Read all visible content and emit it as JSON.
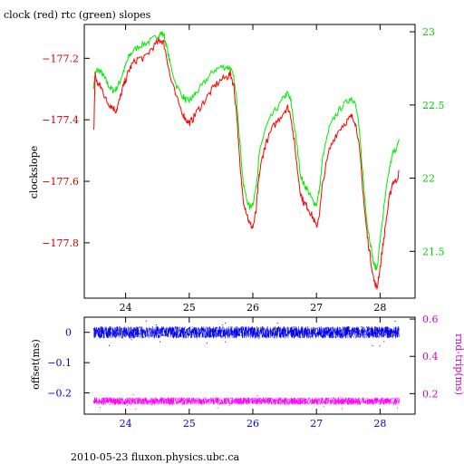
{
  "header": {
    "title": "clock (red) rtc (green) slopes"
  },
  "footer": {
    "text": "2010-05-23 fluxon.physics.ubc.ca"
  },
  "colors": {
    "clock": "#ff0000",
    "rtc": "#00ee00",
    "offset": "#0000ee",
    "roundtrip": "#ff00ff",
    "axis": "#000000",
    "left_top_ticks": "#cc0000",
    "right_top_ticks": "#00cc00",
    "left_bottom_ticks": "#0000cc",
    "right_bottom_ticks": "#cc00cc"
  },
  "chart_data": [
    {
      "type": "line",
      "title": "clock (red) rtc (green) slopes",
      "xlabel": "",
      "ylabel": "clockslope",
      "y2label": "",
      "xlim": [
        23.35,
        28.55
      ],
      "ylim": [
        -177.98,
        -177.09
      ],
      "y2lim": [
        21.18,
        23.05
      ],
      "x_ticks": [
        24,
        25,
        26,
        27,
        28
      ],
      "y_ticks": [
        -177.2,
        -177.4,
        -177.6,
        -177.8
      ],
      "y_tick_labels": [
        "−177.2",
        "−177.4",
        "−177.6",
        "−177.8"
      ],
      "y2_ticks": [
        23,
        22.5,
        22,
        21.5
      ],
      "y2_tick_labels": [
        "23",
        "22.5",
        "22",
        "21.5"
      ],
      "x_tick_labels": [
        "24",
        "25",
        "26",
        "27",
        "28"
      ],
      "grid": false,
      "series": [
        {
          "name": "clock",
          "axis": "left",
          "x": [
            23.5,
            23.52,
            23.55,
            23.6,
            23.65,
            23.7,
            23.75,
            23.8,
            23.85,
            23.9,
            23.95,
            24.0,
            24.05,
            24.1,
            24.2,
            24.3,
            24.4,
            24.5,
            24.55,
            24.6,
            24.65,
            24.7,
            24.8,
            24.9,
            24.95,
            25.0,
            25.05,
            25.1,
            25.2,
            25.3,
            25.4,
            25.5,
            25.6,
            25.65,
            25.7,
            25.75,
            25.8,
            25.85,
            25.9,
            25.95,
            26.0,
            26.05,
            26.08,
            26.1,
            26.15,
            26.2,
            26.3,
            26.4,
            26.5,
            26.55,
            26.6,
            26.65,
            26.7,
            26.75,
            26.8,
            26.85,
            26.9,
            26.95,
            27.0,
            27.05,
            27.1,
            27.2,
            27.3,
            27.4,
            27.5,
            27.55,
            27.6,
            27.65,
            27.7,
            27.75,
            27.8,
            27.85,
            27.9,
            27.95,
            28.0,
            28.05,
            28.1,
            28.15,
            28.2,
            28.25,
            28.3
          ],
          "values": [
            -177.44,
            -177.25,
            -177.28,
            -177.29,
            -177.31,
            -177.34,
            -177.35,
            -177.36,
            -177.37,
            -177.34,
            -177.3,
            -177.27,
            -177.24,
            -177.22,
            -177.2,
            -177.2,
            -177.17,
            -177.15,
            -177.14,
            -177.15,
            -177.2,
            -177.26,
            -177.33,
            -177.38,
            -177.4,
            -177.41,
            -177.4,
            -177.38,
            -177.35,
            -177.32,
            -177.29,
            -177.27,
            -177.26,
            -177.25,
            -177.29,
            -177.39,
            -177.56,
            -177.66,
            -177.7,
            -177.74,
            -177.75,
            -177.7,
            -177.62,
            -177.58,
            -177.52,
            -177.48,
            -177.43,
            -177.4,
            -177.37,
            -177.36,
            -177.39,
            -177.47,
            -177.56,
            -177.64,
            -177.67,
            -177.68,
            -177.7,
            -177.72,
            -177.75,
            -177.7,
            -177.6,
            -177.5,
            -177.45,
            -177.42,
            -177.4,
            -177.39,
            -177.4,
            -177.45,
            -177.55,
            -177.68,
            -177.78,
            -177.85,
            -177.92,
            -177.95,
            -177.88,
            -177.8,
            -177.72,
            -177.65,
            -177.6,
            -177.6,
            -177.57
          ]
        },
        {
          "name": "rtc",
          "axis": "right",
          "x": [
            23.5,
            23.52,
            23.55,
            23.6,
            23.65,
            23.7,
            23.75,
            23.8,
            23.85,
            23.9,
            23.95,
            24.0,
            24.05,
            24.1,
            24.2,
            24.3,
            24.4,
            24.5,
            24.55,
            24.6,
            24.65,
            24.7,
            24.8,
            24.9,
            24.95,
            25.0,
            25.05,
            25.1,
            25.2,
            25.3,
            25.4,
            25.5,
            25.6,
            25.65,
            25.7,
            25.75,
            25.8,
            25.85,
            25.9,
            25.95,
            26.0,
            26.05,
            26.08,
            26.1,
            26.15,
            26.2,
            26.3,
            26.4,
            26.5,
            26.55,
            26.6,
            26.65,
            26.7,
            26.75,
            26.8,
            26.85,
            26.9,
            26.95,
            27.0,
            27.05,
            27.1,
            27.2,
            27.3,
            27.4,
            27.5,
            27.55,
            27.6,
            27.65,
            27.7,
            27.75,
            27.8,
            27.85,
            27.9,
            27.95,
            28.0,
            28.05,
            28.1,
            28.15,
            28.2,
            28.25,
            28.3
          ],
          "values": [
            22.63,
            22.7,
            22.74,
            22.73,
            22.7,
            22.66,
            22.62,
            22.6,
            22.61,
            22.65,
            22.71,
            22.77,
            22.83,
            22.86,
            22.9,
            22.92,
            22.94,
            22.97,
            22.99,
            22.98,
            22.89,
            22.78,
            22.63,
            22.56,
            22.53,
            22.53,
            22.55,
            22.58,
            22.63,
            22.69,
            22.74,
            22.76,
            22.76,
            22.75,
            22.68,
            22.52,
            22.23,
            21.96,
            21.86,
            21.8,
            21.83,
            21.93,
            22.07,
            22.16,
            22.26,
            22.34,
            22.43,
            22.49,
            22.56,
            22.58,
            22.52,
            22.36,
            22.2,
            22.02,
            21.96,
            21.93,
            21.88,
            21.84,
            21.82,
            21.93,
            22.15,
            22.34,
            22.43,
            22.49,
            22.53,
            22.55,
            22.52,
            22.42,
            22.19,
            21.91,
            21.68,
            21.55,
            21.41,
            21.38,
            21.57,
            21.76,
            21.93,
            22.07,
            22.17,
            22.2,
            22.25
          ]
        }
      ]
    },
    {
      "type": "scatter",
      "title": "",
      "xlabel": "",
      "ylabel": "offset(ms)",
      "y2label": "rnd-trip(ms)",
      "xlim": [
        23.35,
        28.55
      ],
      "ylim": [
        -0.27,
        0.05
      ],
      "y2lim": [
        0.09,
        0.61
      ],
      "x_ticks": [
        24,
        25,
        26,
        27,
        28
      ],
      "x_tick_labels": [
        "24",
        "25",
        "26",
        "27",
        "28"
      ],
      "y_ticks": [
        0,
        -0.1,
        -0.2
      ],
      "y_tick_labels": [
        "0",
        "−0.1",
        "−0.2"
      ],
      "y2_ticks": [
        0.6,
        0.4,
        0.2
      ],
      "y2_tick_labels": [
        "0.6",
        "0.4",
        "0.2"
      ],
      "grid": false,
      "series": [
        {
          "name": "offset",
          "axis": "left",
          "x_range": [
            23.5,
            28.3
          ],
          "center": 0.0,
          "spread": 0.02
        },
        {
          "name": "rnd-trip",
          "axis": "right",
          "x_range": [
            23.5,
            28.3
          ],
          "center": 0.16,
          "spread": 0.02
        }
      ]
    }
  ]
}
